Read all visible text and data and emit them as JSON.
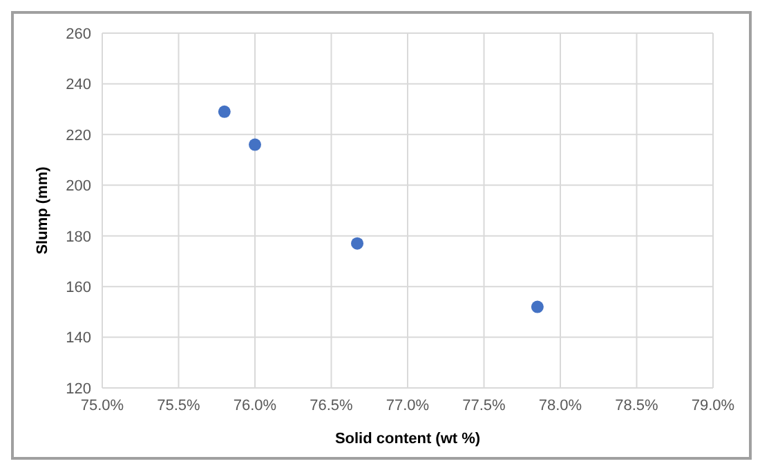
{
  "chart_data": {
    "type": "scatter",
    "xlabel": "Solid content (wt %)",
    "ylabel": "Slump (mm)",
    "x": [
      75.8,
      76.0,
      76.67,
      77.85
    ],
    "series": [
      {
        "color": "#4472c4",
        "values": [
          229,
          216,
          177,
          152
        ]
      }
    ],
    "xlim": [
      75,
      79
    ],
    "xticks": [
      {
        "value": 75,
        "label": "75.0%"
      },
      {
        "value": 75.5,
        "label": "75.5%"
      },
      {
        "value": 76,
        "label": "76.0%"
      },
      {
        "value": 76.5,
        "label": "76.5%"
      },
      {
        "value": 77,
        "label": "77.0%"
      },
      {
        "value": 77.5,
        "label": "77.5%"
      },
      {
        "value": 78,
        "label": "78.0%"
      },
      {
        "value": 78.5,
        "label": "78.5%"
      },
      {
        "value": 79,
        "label": "79.0%"
      }
    ],
    "ylim": [
      120,
      260
    ],
    "yticks": [
      120,
      140,
      160,
      180,
      200,
      220,
      240,
      260
    ],
    "grid": true,
    "marker": "circle"
  }
}
